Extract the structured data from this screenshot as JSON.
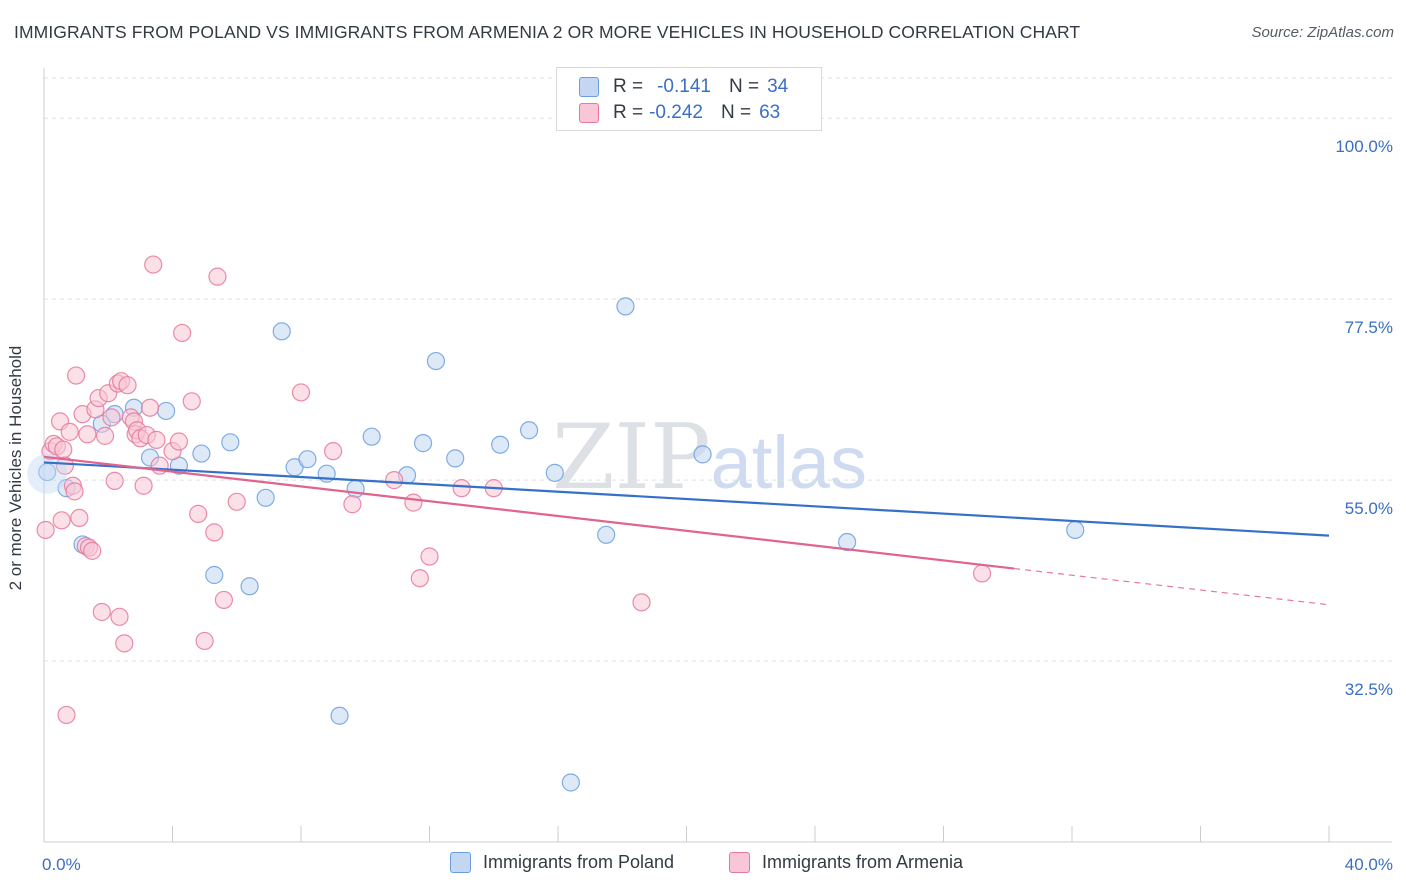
{
  "header": {
    "title": "IMMIGRANTS FROM POLAND VS IMMIGRANTS FROM ARMENIA 2 OR MORE VEHICLES IN HOUSEHOLD CORRELATION CHART",
    "source": "Source: ZipAtlas.com"
  },
  "watermark": {
    "zip": "ZIP",
    "atlas": "atlas"
  },
  "legend": {
    "rows": [
      {
        "r_label": "R =",
        "r_value": "-0.141",
        "n_label": "N =",
        "n_value": "34",
        "color": "#a9c6ef"
      },
      {
        "r_label": "R =",
        "r_value": "-0.242",
        "n_label": "N =",
        "n_value": "63",
        "color": "#f7b6c9"
      }
    ]
  },
  "chart_data": {
    "type": "scatter",
    "title": "IMMIGRANTS FROM POLAND VS IMMIGRANTS FROM ARMENIA 2 OR MORE VEHICLES IN HOUSEHOLD CORRELATION CHART",
    "xlabel": "",
    "ylabel": "2 or more Vehicles in Household",
    "xlim": [
      0,
      40
    ],
    "ylim": [
      10,
      105
    ],
    "x_tick_labels": [
      "0.0%",
      "40.0%"
    ],
    "y_ticks": [
      32.5,
      55.0,
      77.5,
      100.0
    ],
    "y_tick_labels": [
      "32.5%",
      "55.0%",
      "77.5%",
      "100.0%"
    ],
    "grid": true,
    "legend_position": "top-center",
    "series": [
      {
        "name": "Immigrants from Poland",
        "color": "#6a9fdf",
        "fill": "#c3d7f3",
        "trend": {
          "x": [
            0,
            40
          ],
          "y": [
            57.2,
            48.1
          ]
        },
        "points": [
          [
            0.1,
            56.0
          ],
          [
            0.7,
            54.0
          ],
          [
            1.2,
            47.0
          ],
          [
            1.8,
            62.0
          ],
          [
            2.2,
            63.2
          ],
          [
            2.8,
            64.0
          ],
          [
            3.3,
            57.8
          ],
          [
            3.8,
            63.6
          ],
          [
            4.2,
            56.8
          ],
          [
            4.9,
            58.3
          ],
          [
            5.3,
            43.2
          ],
          [
            5.8,
            59.7
          ],
          [
            6.4,
            41.8
          ],
          [
            6.9,
            52.8
          ],
          [
            7.4,
            73.5
          ],
          [
            7.8,
            56.6
          ],
          [
            8.2,
            57.6
          ],
          [
            8.8,
            55.8
          ],
          [
            9.2,
            25.7
          ],
          [
            9.7,
            53.9
          ],
          [
            10.2,
            60.4
          ],
          [
            11.3,
            55.6
          ],
          [
            11.8,
            59.6
          ],
          [
            12.2,
            69.8
          ],
          [
            12.8,
            57.7
          ],
          [
            14.2,
            59.4
          ],
          [
            15.1,
            61.2
          ],
          [
            15.9,
            55.9
          ],
          [
            16.4,
            17.4
          ],
          [
            17.5,
            48.2
          ],
          [
            18.1,
            76.6
          ],
          [
            20.5,
            58.2
          ],
          [
            25.0,
            47.3
          ],
          [
            32.1,
            48.8
          ]
        ]
      },
      {
        "name": "Immigrants from Armenia",
        "color": "#e6789c",
        "fill": "#f8c6d6",
        "trend": {
          "x": [
            0,
            30.2
          ],
          "y": [
            57.9,
            44.0
          ]
        },
        "trend_dashed": {
          "x": [
            30.2,
            40
          ],
          "y": [
            44.0,
            39.5
          ]
        },
        "points": [
          [
            0.05,
            48.8
          ],
          [
            0.2,
            58.6
          ],
          [
            0.3,
            59.5
          ],
          [
            0.4,
            59.2
          ],
          [
            0.5,
            62.3
          ],
          [
            0.55,
            50.0
          ],
          [
            0.6,
            58.8
          ],
          [
            0.65,
            56.8
          ],
          [
            0.7,
            25.8
          ],
          [
            0.8,
            61.0
          ],
          [
            0.9,
            54.3
          ],
          [
            0.95,
            53.6
          ],
          [
            1.0,
            68.0
          ],
          [
            1.1,
            50.3
          ],
          [
            1.2,
            63.2
          ],
          [
            1.3,
            46.8
          ],
          [
            1.35,
            60.7
          ],
          [
            1.4,
            46.6
          ],
          [
            1.5,
            46.2
          ],
          [
            1.6,
            63.8
          ],
          [
            1.7,
            65.2
          ],
          [
            1.8,
            38.6
          ],
          [
            1.9,
            60.5
          ],
          [
            2.0,
            65.8
          ],
          [
            2.1,
            62.8
          ],
          [
            2.2,
            54.9
          ],
          [
            2.3,
            67.0
          ],
          [
            2.35,
            38.0
          ],
          [
            2.4,
            67.3
          ],
          [
            2.5,
            34.7
          ],
          [
            2.6,
            66.8
          ],
          [
            2.7,
            62.8
          ],
          [
            2.8,
            62.3
          ],
          [
            2.85,
            60.7
          ],
          [
            2.9,
            61.2
          ],
          [
            3.0,
            60.2
          ],
          [
            3.1,
            54.3
          ],
          [
            3.2,
            60.6
          ],
          [
            3.3,
            64.0
          ],
          [
            3.5,
            60.0
          ],
          [
            3.4,
            81.8
          ],
          [
            3.6,
            56.8
          ],
          [
            4.0,
            58.6
          ],
          [
            4.2,
            59.8
          ],
          [
            4.3,
            73.3
          ],
          [
            4.6,
            64.8
          ],
          [
            4.8,
            50.8
          ],
          [
            5.3,
            48.5
          ],
          [
            5.4,
            80.3
          ],
          [
            5.6,
            40.1
          ],
          [
            5.0,
            35.0
          ],
          [
            6.0,
            52.3
          ],
          [
            8.0,
            65.9
          ],
          [
            9.0,
            58.6
          ],
          [
            9.6,
            52.0
          ],
          [
            10.9,
            55.0
          ],
          [
            11.5,
            52.2
          ],
          [
            12.0,
            45.5
          ],
          [
            11.7,
            42.8
          ],
          [
            13.0,
            54.0
          ],
          [
            14.0,
            54.0
          ],
          [
            18.6,
            39.8
          ],
          [
            29.2,
            43.4
          ]
        ]
      }
    ]
  },
  "bottom_legend": {
    "items": [
      {
        "label": "Immigrants from Poland",
        "color": "#c3d7f3",
        "border": "#6a9fdf"
      },
      {
        "label": "Immigrants from Armenia",
        "color": "#f8c6d6",
        "border": "#e6789c"
      }
    ]
  }
}
